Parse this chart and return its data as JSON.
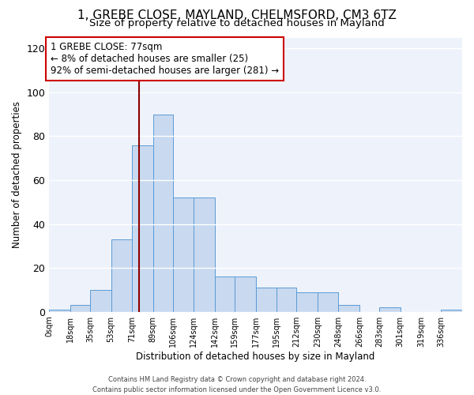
{
  "title": "1, GREBE CLOSE, MAYLAND, CHELMSFORD, CM3 6TZ",
  "subtitle": "Size of property relative to detached houses in Mayland",
  "xlabel": "Distribution of detached houses by size in Mayland",
  "ylabel": "Number of detached properties",
  "bar_color": "#c8d9f0",
  "bar_edge_color": "#5b9bd5",
  "bg_color": "#eef2fb",
  "grid_color": "#ffffff",
  "vline_x": 77,
  "vline_color": "#8b0000",
  "annotation_text": "1 GREBE CLOSE: 77sqm\n← 8% of detached houses are smaller (25)\n92% of semi-detached houses are larger (281) →",
  "annotation_box_color": "#ffffff",
  "annotation_box_edge": "#cc0000",
  "bin_edges": [
    0,
    18,
    35,
    53,
    71,
    89,
    106,
    124,
    142,
    159,
    177,
    195,
    212,
    230,
    248,
    266,
    283,
    301,
    319,
    336,
    354
  ],
  "bar_heights": [
    1,
    3,
    10,
    33,
    76,
    90,
    52,
    52,
    16,
    16,
    11,
    11,
    9,
    9,
    3,
    0,
    2,
    0,
    0,
    1
  ],
  "ylim": [
    0,
    125
  ],
  "yticks": [
    0,
    20,
    40,
    60,
    80,
    100,
    120
  ],
  "footer_text": "Contains HM Land Registry data © Crown copyright and database right 2024.\nContains public sector information licensed under the Open Government Licence v3.0.",
  "title_fontsize": 11,
  "subtitle_fontsize": 9.5,
  "tick_label_fontsize": 7,
  "ylabel_fontsize": 8.5,
  "xlabel_fontsize": 8.5,
  "footer_fontsize": 6.0
}
